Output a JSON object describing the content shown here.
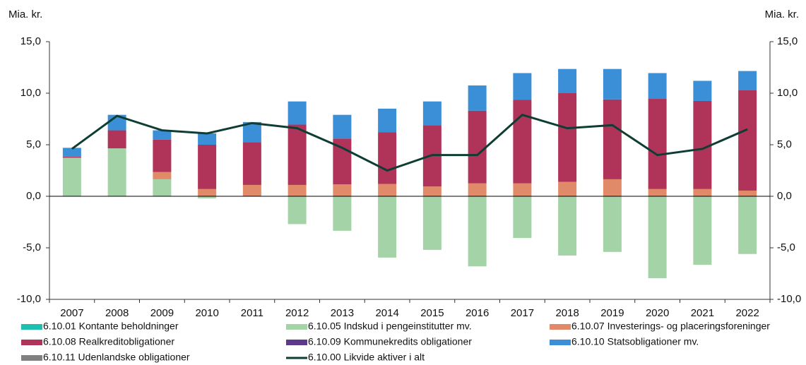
{
  "chart_data": {
    "type": "bar",
    "stacked": true,
    "y_label": "Mia. kr.",
    "y2_label": "Mia. kr.",
    "categories": [
      "2007",
      "2008",
      "2009",
      "2010",
      "2011",
      "2012",
      "2013",
      "2014",
      "2015",
      "2016",
      "2017",
      "2018",
      "2019",
      "2020",
      "2021",
      "2022"
    ],
    "ylim": [
      -10,
      15
    ],
    "y2lim": [
      -10,
      15
    ],
    "yticks": [
      {
        "value": -10,
        "label": "-10,0"
      },
      {
        "value": -5,
        "label": "-5,0"
      },
      {
        "value": 0,
        "label": "0,0"
      },
      {
        "value": 5,
        "label": "5,0"
      },
      {
        "value": 10,
        "label": "10,0"
      },
      {
        "value": 15,
        "label": "15,0"
      }
    ],
    "y2ticks": [
      {
        "value": -10,
        "label": "-10,0"
      },
      {
        "value": -5,
        "label": "-5,0"
      },
      {
        "value": 0,
        "label": "0,0"
      },
      {
        "value": 5,
        "label": "5,0"
      },
      {
        "value": 10,
        "label": "10,0"
      },
      {
        "value": 15,
        "label": "15,0"
      }
    ],
    "grid": false,
    "series": [
      {
        "name": "6.10.01 Kontante beholdninger",
        "color": "#1fbfb0",
        "values": [
          0,
          0,
          0,
          0,
          0,
          0,
          0,
          0,
          0,
          0,
          0,
          0,
          0,
          0,
          0,
          0
        ]
      },
      {
        "name": "6.10.05 Indskud i pengeinstitutter mv.",
        "color": "#a3d3a6",
        "values": [
          3.7,
          4.65,
          1.65,
          -0.2,
          0,
          -2.7,
          -3.35,
          -5.95,
          -5.2,
          -6.8,
          -4.05,
          -5.75,
          -5.4,
          -7.95,
          -6.65,
          -5.6
        ]
      },
      {
        "name": "6.10.07 Investerings- og placeringsforeninger",
        "color": "#e08a6a",
        "values": [
          0.05,
          0,
          0.7,
          0.7,
          1.1,
          1.1,
          1.15,
          1.2,
          0.95,
          1.25,
          1.25,
          1.4,
          1.65,
          0.7,
          0.7,
          0.55
        ]
      },
      {
        "name": "6.10.08 Realkreditobligationer",
        "color": "#b0345a",
        "values": [
          0.1,
          1.75,
          3.15,
          4.3,
          4.15,
          5.85,
          4.45,
          5.0,
          5.95,
          7.05,
          8.1,
          8.6,
          7.75,
          8.75,
          8.55,
          9.75
        ]
      },
      {
        "name": "6.10.09 Kommunekredits obligationer",
        "color": "#5b3a8c",
        "values": [
          0,
          0,
          0,
          0,
          0,
          0,
          0,
          0,
          0,
          0,
          0,
          0,
          0,
          0,
          0,
          0
        ]
      },
      {
        "name": "6.10.10 Statsobligationer mv.",
        "color": "#3a8fd6",
        "values": [
          0.85,
          1.5,
          0.9,
          1.1,
          1.95,
          2.25,
          2.3,
          2.3,
          2.3,
          2.45,
          2.6,
          2.35,
          2.95,
          2.5,
          1.95,
          1.85
        ]
      },
      {
        "name": "6.10.11 Udenlandske obligationer",
        "color": "#808080",
        "values": [
          0,
          0,
          0,
          0,
          0,
          0,
          0,
          0,
          0,
          0,
          0,
          0,
          0,
          0,
          0,
          0
        ]
      },
      {
        "name": "6.10.00 Likvide aktiver i alt",
        "color": "#0e3d33",
        "type": "line",
        "values": [
          4.6,
          7.8,
          6.4,
          6.1,
          7.1,
          6.6,
          4.7,
          2.5,
          4.0,
          4.0,
          7.9,
          6.6,
          6.9,
          4.0,
          4.6,
          6.5
        ]
      }
    ]
  }
}
